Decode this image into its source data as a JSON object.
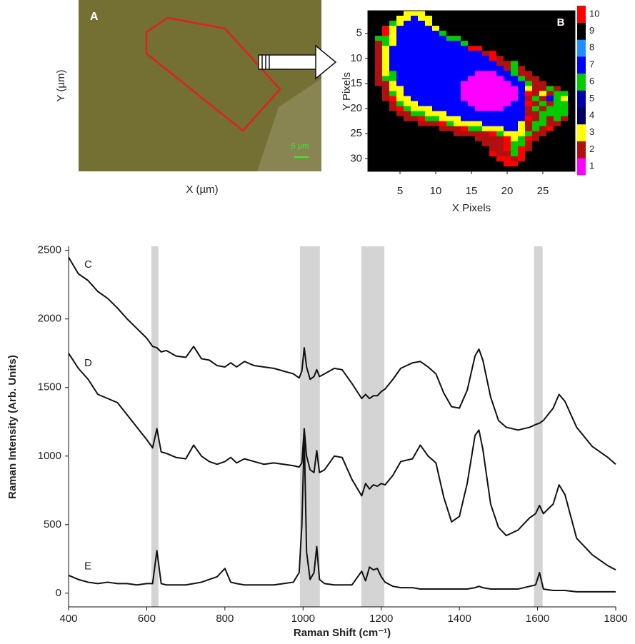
{
  "chart_data": [
    {
      "type": "image",
      "label": "A",
      "xlabel": "X (µm)",
      "ylabel": "Y (µm)",
      "scale_bar": "5 µm"
    },
    {
      "type": "heatmap",
      "label": "B",
      "xlabel": "X Pixels",
      "ylabel": "Y Pixels",
      "xlim": [
        0.5,
        29.5
      ],
      "ylim": [
        32.5,
        0.5
      ],
      "xticks": [
        5,
        10,
        15,
        20,
        25
      ],
      "yticks": [
        5,
        10,
        15,
        20,
        25,
        30
      ],
      "colorbar_ticks": [
        1,
        2,
        3,
        4,
        5,
        6,
        7,
        8,
        9,
        10
      ],
      "colors": [
        "#ff00ff",
        "#b01010",
        "#ffff00",
        "#000060",
        "#0000a8",
        "#00cc00",
        "#0000ff",
        "#1e90ff",
        "#000000",
        "#ff0000"
      ],
      "z": [
        [
          9,
          9,
          9,
          9,
          9,
          3,
          3,
          3,
          9,
          9,
          9,
          9,
          9,
          9,
          9,
          9,
          9,
          9,
          9,
          9,
          9,
          9,
          9,
          9,
          9,
          9,
          9,
          9,
          9
        ],
        [
          9,
          9,
          9,
          9,
          3,
          3,
          7,
          3,
          3,
          9,
          9,
          9,
          9,
          9,
          9,
          9,
          9,
          9,
          9,
          9,
          9,
          9,
          9,
          9,
          9,
          9,
          9,
          9,
          9
        ],
        [
          9,
          9,
          9,
          6,
          3,
          7,
          7,
          7,
          3,
          9,
          9,
          9,
          9,
          9,
          9,
          9,
          9,
          9,
          9,
          9,
          9,
          9,
          9,
          9,
          9,
          9,
          9,
          9,
          9
        ],
        [
          9,
          9,
          10,
          3,
          7,
          7,
          7,
          7,
          7,
          3,
          9,
          9,
          9,
          9,
          9,
          9,
          9,
          9,
          9,
          9,
          9,
          9,
          9,
          9,
          9,
          9,
          9,
          9,
          9
        ],
        [
          9,
          9,
          10,
          3,
          7,
          7,
          7,
          7,
          7,
          7,
          6,
          9,
          9,
          9,
          9,
          9,
          9,
          9,
          9,
          9,
          9,
          9,
          9,
          9,
          9,
          9,
          9,
          9,
          9
        ],
        [
          9,
          6,
          6,
          3,
          7,
          7,
          7,
          7,
          7,
          7,
          7,
          6,
          6,
          9,
          9,
          9,
          9,
          9,
          9,
          9,
          9,
          9,
          9,
          9,
          9,
          9,
          9,
          9,
          9
        ],
        [
          9,
          2,
          6,
          3,
          7,
          7,
          7,
          7,
          7,
          7,
          7,
          7,
          7,
          6,
          9,
          9,
          9,
          9,
          9,
          9,
          9,
          9,
          9,
          9,
          9,
          9,
          9,
          9,
          9
        ],
        [
          9,
          2,
          3,
          7,
          7,
          7,
          7,
          7,
          7,
          7,
          7,
          7,
          7,
          7,
          10,
          10,
          9,
          9,
          9,
          9,
          9,
          9,
          9,
          9,
          9,
          9,
          9,
          9,
          9
        ],
        [
          9,
          2,
          3,
          7,
          7,
          7,
          7,
          7,
          7,
          7,
          7,
          7,
          7,
          7,
          7,
          7,
          2,
          10,
          9,
          9,
          9,
          9,
          9,
          9,
          9,
          9,
          9,
          9,
          9
        ],
        [
          9,
          2,
          3,
          7,
          7,
          7,
          7,
          7,
          7,
          7,
          7,
          7,
          7,
          7,
          7,
          7,
          7,
          10,
          2,
          9,
          9,
          9,
          9,
          9,
          9,
          9,
          9,
          9,
          9
        ],
        [
          9,
          2,
          3,
          7,
          7,
          7,
          7,
          7,
          7,
          7,
          7,
          7,
          7,
          7,
          7,
          7,
          7,
          7,
          2,
          2,
          6,
          9,
          9,
          9,
          9,
          9,
          9,
          9,
          9
        ],
        [
          9,
          2,
          3,
          7,
          7,
          7,
          7,
          7,
          7,
          7,
          7,
          7,
          7,
          7,
          7,
          7,
          7,
          7,
          7,
          2,
          6,
          2,
          9,
          9,
          9,
          9,
          9,
          9,
          9
        ],
        [
          9,
          2,
          3,
          6,
          7,
          7,
          7,
          7,
          7,
          7,
          7,
          7,
          7,
          7,
          7,
          1,
          1,
          1,
          7,
          7,
          6,
          2,
          2,
          9,
          9,
          9,
          9,
          9,
          9
        ],
        [
          9,
          2,
          6,
          6,
          7,
          7,
          7,
          7,
          7,
          7,
          7,
          7,
          7,
          7,
          1,
          1,
          1,
          1,
          1,
          7,
          7,
          6,
          2,
          2,
          9,
          9,
          9,
          9,
          9
        ],
        [
          9,
          2,
          2,
          3,
          7,
          7,
          7,
          7,
          7,
          7,
          7,
          7,
          7,
          1,
          1,
          1,
          1,
          1,
          1,
          1,
          7,
          7,
          6,
          2,
          2,
          9,
          9,
          9,
          9
        ],
        [
          9,
          9,
          2,
          3,
          3,
          7,
          7,
          7,
          7,
          7,
          7,
          7,
          7,
          1,
          1,
          1,
          1,
          1,
          1,
          1,
          1,
          7,
          3,
          2,
          2,
          6,
          2,
          9,
          9
        ],
        [
          9,
          9,
          2,
          6,
          3,
          7,
          7,
          7,
          7,
          7,
          7,
          7,
          7,
          1,
          1,
          1,
          1,
          1,
          1,
          1,
          1,
          7,
          10,
          2,
          3,
          2,
          6,
          6,
          9
        ],
        [
          9,
          9,
          2,
          10,
          3,
          3,
          7,
          7,
          7,
          7,
          7,
          7,
          7,
          1,
          1,
          1,
          1,
          1,
          1,
          1,
          1,
          7,
          2,
          6,
          2,
          7,
          6,
          3,
          9
        ],
        [
          9,
          9,
          9,
          2,
          6,
          3,
          3,
          7,
          7,
          7,
          7,
          7,
          7,
          7,
          1,
          1,
          1,
          1,
          1,
          1,
          7,
          7,
          10,
          2,
          6,
          2,
          6,
          6,
          9
        ],
        [
          9,
          9,
          9,
          2,
          10,
          6,
          3,
          3,
          3,
          7,
          7,
          7,
          7,
          7,
          7,
          1,
          1,
          1,
          1,
          7,
          7,
          7,
          2,
          6,
          2,
          6,
          6,
          6,
          9
        ],
        [
          9,
          9,
          9,
          9,
          2,
          2,
          6,
          6,
          3,
          3,
          3,
          7,
          7,
          7,
          7,
          7,
          7,
          7,
          7,
          7,
          7,
          7,
          2,
          2,
          6,
          6,
          6,
          6,
          9
        ],
        [
          9,
          9,
          9,
          9,
          9,
          2,
          2,
          10,
          6,
          6,
          3,
          3,
          3,
          7,
          7,
          7,
          7,
          7,
          7,
          7,
          7,
          7,
          10,
          2,
          6,
          2,
          6,
          2,
          9
        ],
        [
          9,
          9,
          9,
          9,
          9,
          9,
          9,
          2,
          2,
          2,
          10,
          6,
          3,
          3,
          3,
          3,
          7,
          7,
          7,
          7,
          7,
          3,
          2,
          6,
          6,
          2,
          2,
          9,
          9
        ],
        [
          9,
          9,
          9,
          9,
          9,
          9,
          9,
          9,
          9,
          9,
          2,
          2,
          2,
          10,
          6,
          6,
          3,
          3,
          3,
          7,
          7,
          3,
          2,
          6,
          2,
          10,
          9,
          9,
          9
        ],
        [
          9,
          9,
          9,
          9,
          9,
          9,
          9,
          9,
          9,
          9,
          9,
          9,
          2,
          2,
          2,
          2,
          2,
          10,
          6,
          3,
          3,
          3,
          6,
          2,
          2,
          9,
          9,
          9,
          9
        ],
        [
          9,
          9,
          9,
          9,
          9,
          9,
          9,
          9,
          9,
          9,
          9,
          9,
          9,
          9,
          9,
          2,
          2,
          2,
          2,
          10,
          3,
          6,
          10,
          2,
          9,
          9,
          9,
          9,
          9
        ],
        [
          9,
          9,
          9,
          9,
          9,
          9,
          9,
          9,
          9,
          9,
          9,
          9,
          9,
          9,
          9,
          9,
          2,
          2,
          2,
          10,
          6,
          6,
          2,
          9,
          9,
          9,
          9,
          9,
          9
        ],
        [
          9,
          9,
          9,
          9,
          9,
          9,
          9,
          9,
          9,
          9,
          9,
          9,
          9,
          9,
          9,
          9,
          9,
          2,
          2,
          10,
          6,
          10,
          2,
          9,
          9,
          9,
          9,
          9,
          9
        ],
        [
          9,
          9,
          9,
          9,
          9,
          9,
          9,
          9,
          9,
          9,
          9,
          9,
          9,
          9,
          9,
          9,
          9,
          10,
          2,
          2,
          6,
          10,
          9,
          9,
          9,
          9,
          9,
          9,
          9
        ],
        [
          9,
          9,
          9,
          9,
          9,
          9,
          9,
          9,
          9,
          9,
          9,
          9,
          9,
          9,
          9,
          9,
          9,
          9,
          10,
          10,
          2,
          10,
          9,
          9,
          9,
          9,
          9,
          9,
          9
        ],
        [
          9,
          9,
          9,
          9,
          9,
          9,
          9,
          9,
          9,
          9,
          9,
          9,
          9,
          9,
          9,
          9,
          9,
          9,
          9,
          10,
          10,
          9,
          9,
          9,
          9,
          9,
          9,
          9,
          9
        ],
        [
          9,
          9,
          9,
          9,
          9,
          9,
          9,
          9,
          9,
          9,
          9,
          9,
          9,
          9,
          9,
          9,
          9,
          9,
          9,
          9,
          9,
          9,
          9,
          9,
          9,
          9,
          9,
          9,
          9
        ]
      ]
    },
    {
      "type": "line",
      "xlabel": "Raman Shift (cm⁻¹)",
      "ylabel": "Raman Intensity (Arb. Units)",
      "xlim": [
        400,
        1800
      ],
      "ylim": [
        -100,
        2530
      ],
      "xticks": [
        400,
        600,
        800,
        1000,
        1200,
        1400,
        1600,
        1800
      ],
      "yticks": [
        0,
        500,
        1000,
        1500,
        2000,
        2500
      ],
      "bands": [
        [
          612,
          630
        ],
        [
          992,
          1043
        ],
        [
          1149,
          1208
        ],
        [
          1591,
          1613
        ]
      ],
      "band_color": "#d4d4d4",
      "x": [
        400,
        425,
        450,
        475,
        500,
        525,
        550,
        575,
        600,
        615,
        626,
        637,
        650,
        675,
        700,
        720,
        740,
        760,
        780,
        800,
        815,
        830,
        850,
        875,
        900,
        925,
        950,
        975,
        990,
        997,
        1003,
        1009,
        1018,
        1028,
        1035,
        1042,
        1055,
        1080,
        1100,
        1125,
        1150,
        1160,
        1170,
        1180,
        1190,
        1200,
        1210,
        1230,
        1250,
        1280,
        1300,
        1320,
        1340,
        1360,
        1380,
        1400,
        1420,
        1440,
        1450,
        1460,
        1480,
        1500,
        1520,
        1550,
        1580,
        1595,
        1605,
        1615,
        1640,
        1655,
        1670,
        1700,
        1740,
        1780,
        1800
      ],
      "series": [
        {
          "name": "C",
          "color": "#111111",
          "values": [
            2450,
            2330,
            2280,
            2200,
            2150,
            2080,
            2000,
            1930,
            1860,
            1800,
            1790,
            1760,
            1770,
            1730,
            1720,
            1800,
            1710,
            1700,
            1660,
            1650,
            1680,
            1650,
            1690,
            1660,
            1650,
            1640,
            1620,
            1600,
            1570,
            1620,
            1790,
            1650,
            1560,
            1580,
            1630,
            1580,
            1600,
            1640,
            1630,
            1530,
            1420,
            1450,
            1420,
            1440,
            1440,
            1470,
            1490,
            1560,
            1640,
            1680,
            1690,
            1650,
            1600,
            1460,
            1360,
            1350,
            1480,
            1730,
            1780,
            1700,
            1430,
            1260,
            1210,
            1190,
            1210,
            1230,
            1240,
            1260,
            1350,
            1450,
            1400,
            1210,
            1070,
            990,
            940
          ]
        },
        {
          "name": "D",
          "color": "#111111",
          "values": [
            1750,
            1640,
            1560,
            1450,
            1420,
            1390,
            1300,
            1210,
            1120,
            1060,
            1200,
            1030,
            1020,
            990,
            980,
            1080,
            1000,
            960,
            940,
            960,
            990,
            950,
            980,
            960,
            940,
            950,
            940,
            930,
            920,
            950,
            1200,
            1000,
            900,
            880,
            1040,
            880,
            900,
            1000,
            990,
            830,
            710,
            800,
            760,
            790,
            780,
            800,
            790,
            860,
            960,
            980,
            1080,
            1000,
            950,
            700,
            520,
            560,
            800,
            1150,
            1190,
            1050,
            650,
            480,
            420,
            460,
            550,
            580,
            640,
            580,
            650,
            790,
            720,
            400,
            280,
            200,
            170
          ]
        },
        {
          "name": "E",
          "color": "#111111",
          "values": [
            130,
            100,
            80,
            70,
            80,
            70,
            70,
            60,
            70,
            70,
            310,
            70,
            60,
            60,
            60,
            70,
            80,
            100,
            120,
            180,
            80,
            70,
            60,
            60,
            60,
            60,
            70,
            80,
            150,
            500,
            1150,
            300,
            100,
            150,
            340,
            100,
            70,
            60,
            60,
            60,
            160,
            90,
            190,
            170,
            180,
            120,
            80,
            50,
            40,
            40,
            30,
            30,
            30,
            30,
            30,
            30,
            30,
            40,
            50,
            40,
            30,
            30,
            30,
            30,
            50,
            60,
            150,
            30,
            20,
            20,
            20,
            10,
            10,
            10,
            10
          ]
        }
      ]
    }
  ]
}
